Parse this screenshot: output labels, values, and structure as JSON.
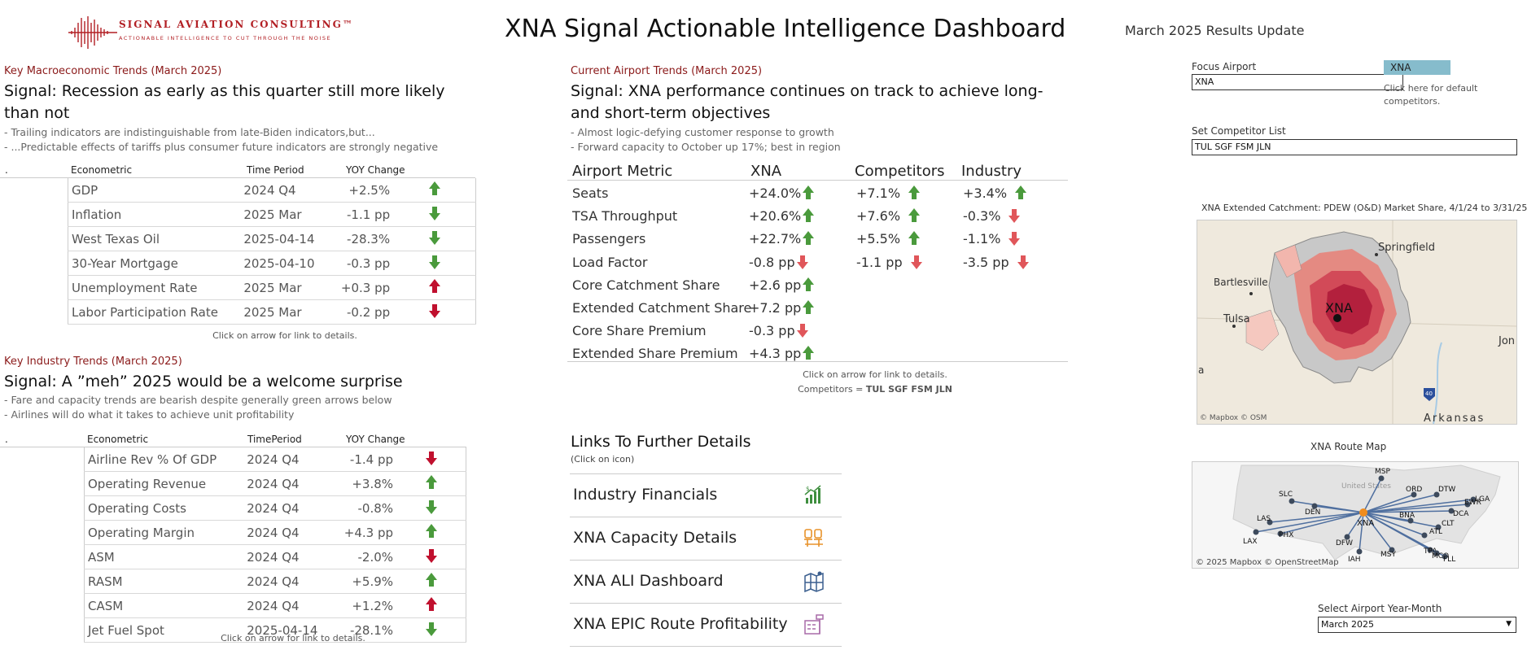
{
  "header": {
    "logo_name": "SIGNAL AVIATION CONSULTING™",
    "logo_tagline": "ACTIONABLE INTELLIGENCE TO CUT THROUGH THE NOISE",
    "title": "XNA Signal Actionable Intelligence Dashboard",
    "update": "March 2025 Results Update"
  },
  "colors": {
    "up": "#4a9a3c",
    "down_strong": "#c0102e",
    "down_light": "#e0565a",
    "section_label": "#8b1a1a"
  },
  "macro": {
    "label": "Key Macroeconomic Trends (March 2025)",
    "signal": "Signal: Recession as early as this quarter still more likely than not",
    "bullets": [
      "- Trailing indicators are indistinguishable from late-Biden indicators,but...",
      "- ...Predictable effects of tariffs plus consumer future indicators are strongly negative"
    ],
    "headers": {
      "dot": ".",
      "metric": "Econometric",
      "period": "Time Period",
      "change": "YOY Change"
    },
    "rows": [
      {
        "metric": "GDP",
        "period": "2024 Q4",
        "change": "+2.5%",
        "dir": "up",
        "color": "g"
      },
      {
        "metric": "Inflation",
        "period": "2025 Mar",
        "change": "-1.1 pp",
        "dir": "down",
        "color": "g"
      },
      {
        "metric": "West Texas Oil",
        "period": "2025-04-14",
        "change": "-28.3%",
        "dir": "down",
        "color": "g"
      },
      {
        "metric": "30-Year Mortgage",
        "period": "2025-04-10",
        "change": "-0.3 pp",
        "dir": "down",
        "color": "g"
      },
      {
        "metric": "Unemployment Rate",
        "period": "2025 Mar",
        "change": "+0.3 pp",
        "dir": "up",
        "color": "r"
      },
      {
        "metric": "Labor Participation Rate",
        "period": "2025 Mar",
        "change": "-0.2 pp",
        "dir": "down",
        "color": "r"
      }
    ],
    "note": "Click on arrow for link to details."
  },
  "industry": {
    "label": "Key Industry Trends (March 2025)",
    "signal": "Signal: A ”meh” 2025 would be a welcome surprise",
    "bullets": [
      "- Fare and capacity trends are bearish despite generally green arrows below",
      "- Airlines will do what it takes to achieve unit profitability"
    ],
    "headers": {
      "dot": ".",
      "metric": "Econometric",
      "period": "TimePeriod",
      "change": "YOY Change"
    },
    "rows": [
      {
        "metric": "Airline Rev % Of GDP",
        "period": "2024 Q4",
        "change": "-1.4 pp",
        "dir": "down",
        "color": "r"
      },
      {
        "metric": "Operating Revenue",
        "period": "2024 Q4",
        "change": "+3.8%",
        "dir": "up",
        "color": "g"
      },
      {
        "metric": "Operating Costs",
        "period": "2024 Q4",
        "change": "-0.8%",
        "dir": "down",
        "color": "g"
      },
      {
        "metric": "Operating Margin",
        "period": "2024 Q4",
        "change": "+4.3 pp",
        "dir": "up",
        "color": "g"
      },
      {
        "metric": "ASM",
        "period": "2024 Q4",
        "change": "-2.0%",
        "dir": "down",
        "color": "r"
      },
      {
        "metric": "RASM",
        "period": "2024 Q4",
        "change": "+5.9%",
        "dir": "up",
        "color": "g"
      },
      {
        "metric": "CASM",
        "period": "2024 Q4",
        "change": "+1.2%",
        "dir": "up",
        "color": "r"
      },
      {
        "metric": "Jet Fuel Spot",
        "period": "2025-04-14",
        "change": "-28.1%",
        "dir": "down",
        "color": "g"
      }
    ],
    "note": "Click on arrow for link to details."
  },
  "airport": {
    "label": "Current Airport Trends (March 2025)",
    "signal": "Signal: XNA performance continues on track to achieve long- and short-term objectives",
    "bullets": [
      "- Almost logic-defying customer response to growth",
      "- Forward capacity to October up 17%; best in region"
    ],
    "headers": {
      "metric": "Airport Metric",
      "xna": "XNA",
      "comp": "Competitors",
      "ind": "Industry"
    },
    "rows": [
      {
        "metric": "Seats",
        "xna": "+24.0%",
        "xd": "up",
        "xc": "g",
        "comp": "+7.1%",
        "cd": "up",
        "cc": "g",
        "ind": "+3.4%",
        "id": "up",
        "ic": "g"
      },
      {
        "metric": "TSA Throughput",
        "xna": "+20.6%",
        "xd": "up",
        "xc": "g",
        "comp": "+7.6%",
        "cd": "up",
        "cc": "g",
        "ind": "-0.3%",
        "id": "down",
        "ic": "lr"
      },
      {
        "metric": "Passengers",
        "xna": "+22.7%",
        "xd": "up",
        "xc": "g",
        "comp": "+5.5%",
        "cd": "up",
        "cc": "g",
        "ind": "-1.1%",
        "id": "down",
        "ic": "lr"
      },
      {
        "metric": "Load Factor",
        "xna": "-0.8 pp",
        "xd": "down",
        "xc": "lr",
        "comp": "-1.1 pp",
        "cd": "down",
        "cc": "lr",
        "ind": "-3.5 pp",
        "id": "down",
        "ic": "lr"
      },
      {
        "metric": "Core Catchment Share",
        "xna": "+2.6 pp",
        "xd": "up",
        "xc": "g"
      },
      {
        "metric": "Extended Catchment Share",
        "xna": "+7.2 pp",
        "xd": "up",
        "xc": "g"
      },
      {
        "metric": "Core Share Premium",
        "xna": "-0.3 pp",
        "xd": "down",
        "xc": "lr"
      },
      {
        "metric": "Extended Share Premium",
        "xna": "+4.3 pp",
        "xd": "up",
        "xc": "g"
      }
    ],
    "note1": "Click on arrow for link to details.",
    "note2_prefix": "Competitors = ",
    "note2_value": "TUL SGF FSM JLN"
  },
  "links": {
    "title": "Links To Further Details",
    "subtitle": "(Click on icon)",
    "items": [
      {
        "label": "Industry Financials",
        "icon": "chart-growth-icon"
      },
      {
        "label": "XNA Capacity Details",
        "icon": "seats-icon"
      },
      {
        "label": "XNA ALI Dashboard",
        "icon": "map-pin-icon"
      },
      {
        "label": "XNA EPIC Route Profitability",
        "icon": "airport-tower-icon"
      }
    ]
  },
  "controls": {
    "focus_label": "Focus Airport",
    "focus_value": "XNA",
    "default_button": "XNA",
    "default_hint": "Click here for default competitors.",
    "competitor_label": "Set Competitor List",
    "competitor_value": "TUL SGF FSM JLN",
    "month_label": "Select Airport Year-Month",
    "month_value": "March 2025"
  },
  "catchment_map": {
    "title_prefix": "XNA Extended Catchment:  ",
    "title_main": "PDEW (O&D) Market Share, 4/1/24 to 3/31/25",
    "places": [
      "Springfield",
      "Bartlesville",
      "Tulsa",
      "XNA",
      "Jon",
      "Arkansas",
      "a"
    ],
    "shield": "40",
    "attribution": "© Mapbox  © OSM"
  },
  "route_map": {
    "title": "XNA Route Map",
    "hub": "XNA",
    "destinations": [
      "MSP",
      "ORD",
      "DTW",
      "SLC",
      "DEN",
      "LGA",
      "EWR",
      "DCA",
      "BNA",
      "CLT",
      "LAS",
      "ATL",
      "LAX",
      "PHX",
      "DFW",
      "IAH",
      "MSY",
      "TPA",
      "MCO",
      "FLL"
    ],
    "area_label": "United States",
    "attribution": "© 2025 Mapbox  © OpenStreetMap"
  }
}
